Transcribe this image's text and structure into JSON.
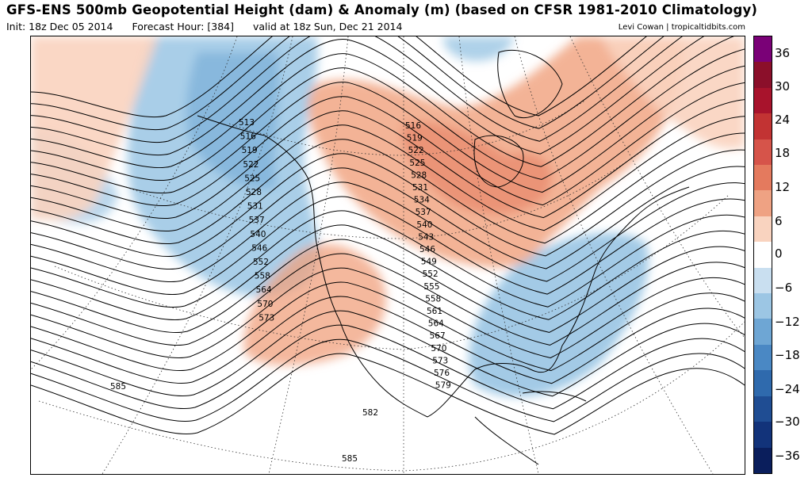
{
  "header": {
    "title": "GFS-ENS 500mb Geopotential Height (dam) & Anomaly (m) (based on CFSR 1981-2010 Climatology)",
    "init": "Init: 18z Dec 05 2014",
    "forecast_hour": "Forecast Hour: [384]",
    "valid": "valid at 18z Sun, Dec 21 2014",
    "credit": "Levi Cowan | tropicaltidbits.com"
  },
  "colorbar": {
    "labels": [
      "36",
      "30",
      "24",
      "18",
      "12",
      "6",
      "0",
      "−6",
      "−12",
      "−18",
      "−24",
      "−30",
      "−36"
    ],
    "colors": [
      "#7a0177",
      "#8b0f2a",
      "#a8132c",
      "#c23333",
      "#d6544a",
      "#e47a5e",
      "#efa283",
      "#f9d3bf",
      "#ffffff",
      "#c9dff0",
      "#9cc6e4",
      "#6ea6d4",
      "#4a88c4",
      "#2f6aad",
      "#1f4d93",
      "#12337a",
      "#0a1e5c"
    ]
  },
  "contour_labels": {
    "west_coast": [
      "513",
      "516",
      "519",
      "522",
      "525",
      "528",
      "531",
      "537",
      "540",
      "546",
      "552",
      "558",
      "564",
      "570",
      "573"
    ],
    "east_trough": [
      "516",
      "519",
      "522",
      "525",
      "528",
      "531",
      "534",
      "537",
      "540",
      "543",
      "546",
      "549",
      "552",
      "555",
      "558",
      "561",
      "564",
      "567",
      "570",
      "573",
      "576",
      "579"
    ],
    "south": [
      "585",
      "582",
      "585"
    ]
  },
  "colors": {
    "positive_anomaly": "#f0a07c",
    "negative_anomaly": "#8cbde0"
  }
}
